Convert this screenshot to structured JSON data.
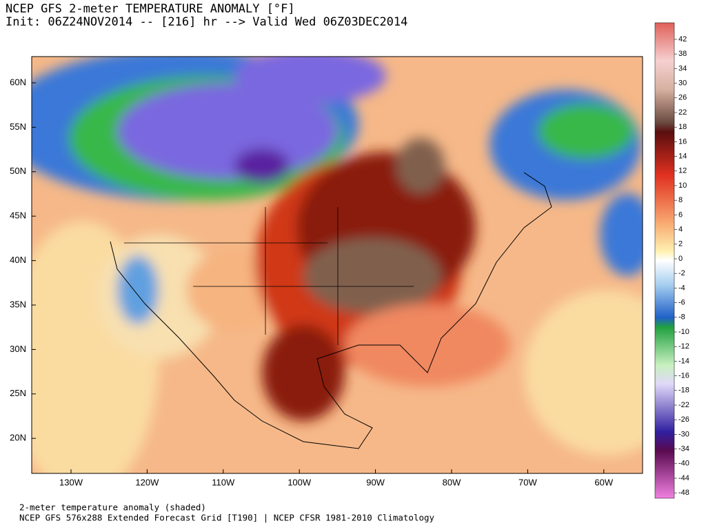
{
  "header": {
    "title": "NCEP GFS 2-meter TEMPERATURE ANOMALY [°F]",
    "subtitle": "Init: 06Z24NOV2014 -- [216] hr --> Valid Wed 06Z03DEC2014"
  },
  "map": {
    "lat_labels": [
      "60N",
      "55N",
      "50N",
      "45N",
      "40N",
      "35N",
      "30N",
      "25N",
      "20N"
    ],
    "lon_labels": [
      "130W",
      "120W",
      "110W",
      "100W",
      "90W",
      "80W",
      "70W",
      "60W"
    ]
  },
  "colorbar": {
    "labels": [
      "42",
      "38",
      "34",
      "30",
      "26",
      "22",
      "18",
      "16",
      "14",
      "12",
      "10",
      "8",
      "6",
      "4",
      "2",
      "0",
      "-2",
      "-4",
      "-6",
      "-8",
      "-10",
      "-12",
      "-14",
      "-16",
      "-18",
      "-22",
      "-26",
      "-30",
      "-34",
      "-40",
      "-44",
      "-48"
    ]
  },
  "footer": {
    "line1": "2-meter temperature anomaly (shaded)",
    "line2": "NCEP GFS 576x288 Extended Forecast Grid [T190] | NCEP CFSR 1981-2010 Climatology"
  }
}
